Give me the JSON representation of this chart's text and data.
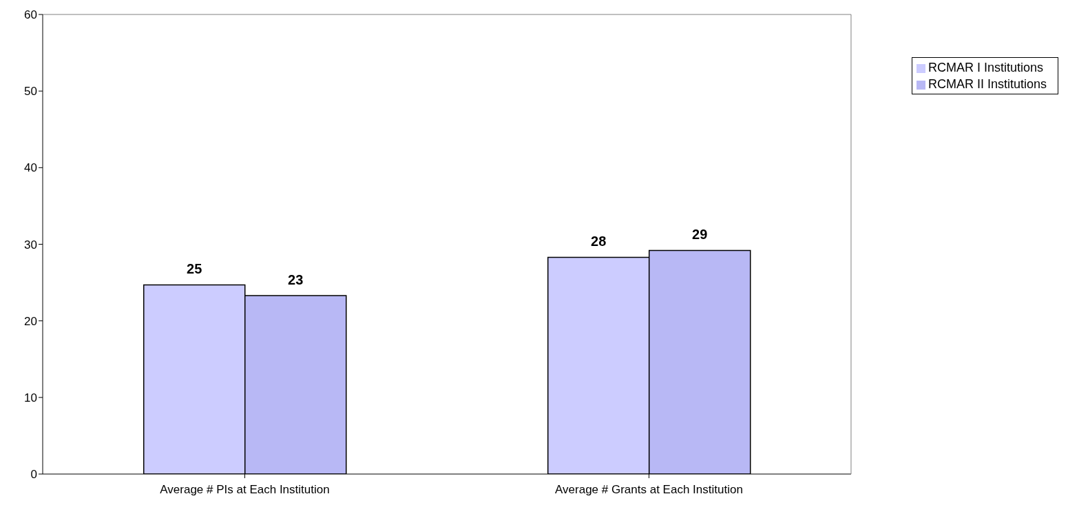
{
  "chart_data": {
    "type": "bar",
    "categories": [
      "Average # PIs at Each Institution",
      "Average # Grants at Each Institution"
    ],
    "series": [
      {
        "name": "RCMAR I Institutions",
        "color": "#ccccff",
        "values": [
          24.7,
          28.3
        ],
        "value_labels": [
          "25",
          "28"
        ]
      },
      {
        "name": "RCMAR II Institutions",
        "color": "#b8b8f5",
        "values": [
          23.3,
          29.2
        ],
        "value_labels": [
          "23",
          "29"
        ]
      }
    ],
    "ylim": [
      0,
      60
    ],
    "yticks": [
      0,
      10,
      20,
      30,
      40,
      50,
      60
    ],
    "grid": false,
    "legend": "top right"
  }
}
